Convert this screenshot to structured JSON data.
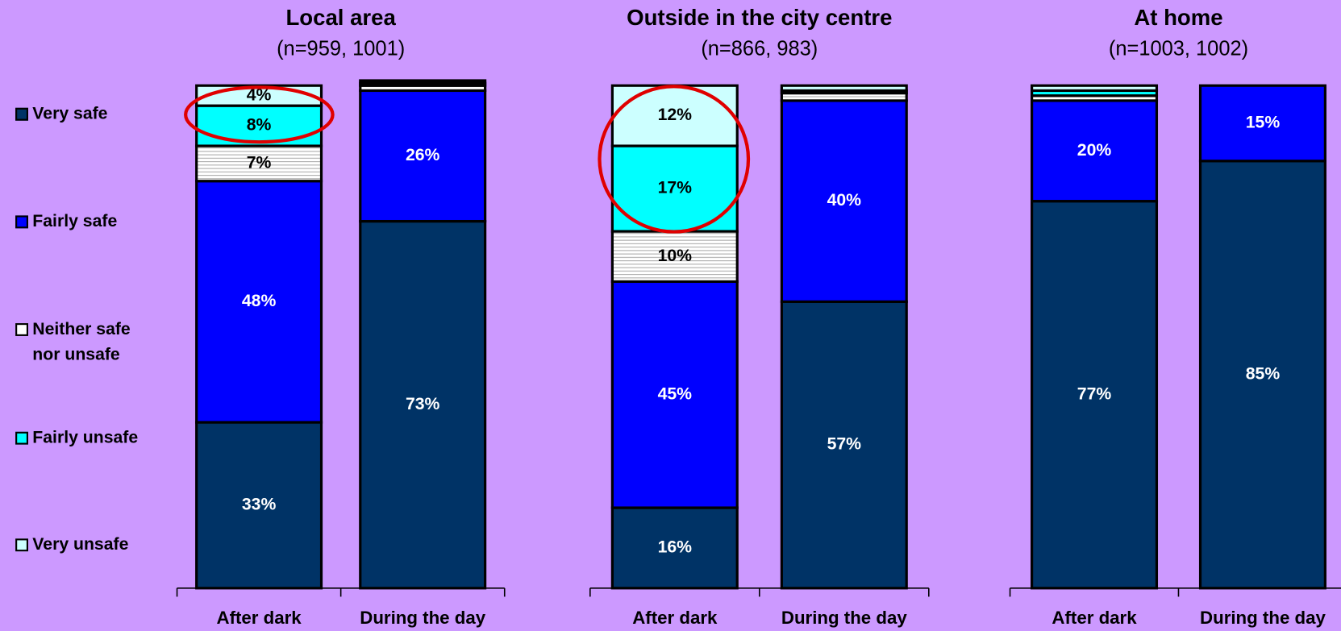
{
  "chart_data": [
    {
      "type": "stacked-bar",
      "title": "Local area",
      "subtitle": "(n=959, 1001)",
      "categories": [
        "After dark",
        "During the day"
      ],
      "ylim": [
        0,
        100
      ],
      "series": [
        {
          "name": "Very safe",
          "color": "#003366",
          "values": [
            33,
            73
          ],
          "value_labels": [
            "33%",
            "73%"
          ]
        },
        {
          "name": "Fairly safe",
          "color": "#0000ff",
          "values": [
            48,
            26
          ],
          "value_labels": [
            "48%",
            "26%"
          ]
        },
        {
          "name": "Neither safe nor unsafe",
          "color": "#ffffff",
          "values": [
            7,
            1
          ],
          "value_labels": [
            "7%",
            null
          ]
        },
        {
          "name": "Fairly unsafe",
          "color": "#00ffff",
          "values": [
            8,
            0.5
          ],
          "value_labels": [
            "8%",
            null
          ]
        },
        {
          "name": "Very unsafe",
          "color": "#ccffff",
          "values": [
            4,
            0.5
          ],
          "value_labels": [
            "4%",
            null
          ]
        }
      ]
    },
    {
      "type": "stacked-bar",
      "title": "Outside in the city centre",
      "subtitle": "(n=866, 983)",
      "categories": [
        "After dark",
        "During the day"
      ],
      "ylim": [
        0,
        100
      ],
      "series": [
        {
          "values": [
            16,
            57
          ],
          "value_labels": [
            "16%",
            "57%"
          ]
        },
        {
          "values": [
            45,
            40
          ],
          "value_labels": [
            "45%",
            "40%"
          ]
        },
        {
          "values": [
            10,
            1.5
          ],
          "value_labels": [
            "10%",
            null
          ]
        },
        {
          "values": [
            17,
            0.5
          ],
          "value_labels": [
            "17%",
            null
          ]
        },
        {
          "values": [
            12,
            1
          ],
          "value_labels": [
            "12%",
            null
          ]
        }
      ]
    },
    {
      "type": "stacked-bar",
      "title": "At home",
      "subtitle": "(n=1003, 1002)",
      "categories": [
        "After dark",
        "During the day"
      ],
      "ylim": [
        0,
        100
      ],
      "series": [
        {
          "values": [
            77,
            85
          ],
          "value_labels": [
            "77%",
            "85%"
          ]
        },
        {
          "values": [
            20,
            15
          ],
          "value_labels": [
            "20%",
            "15%"
          ]
        },
        {
          "values": [
            1,
            0
          ],
          "value_labels": [
            null,
            null
          ]
        },
        {
          "values": [
            1,
            0
          ],
          "value_labels": [
            null,
            null
          ]
        },
        {
          "values": [
            1,
            0
          ],
          "value_labels": [
            null,
            null
          ]
        }
      ]
    }
  ]
}
